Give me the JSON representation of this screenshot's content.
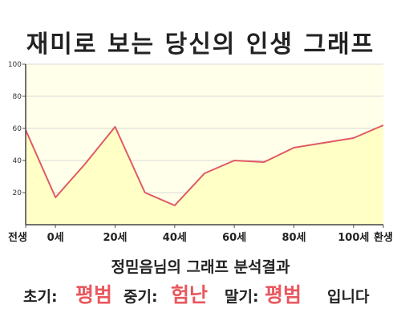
{
  "title": "재미로 보는 당신의 인생 그래프",
  "chart_data": {
    "type": "area",
    "x": [
      -10,
      0,
      10,
      20,
      30,
      40,
      50,
      60,
      70,
      80,
      90,
      100,
      110
    ],
    "y": [
      59,
      17,
      38,
      61,
      20,
      12,
      32,
      40,
      39,
      48,
      51,
      54,
      62
    ],
    "xlim": [
      -10,
      110
    ],
    "ylim": [
      0,
      100
    ],
    "yticks": [
      20,
      40,
      60,
      80,
      100
    ],
    "xtick_positions": [
      -10,
      0,
      20,
      40,
      60,
      80,
      100,
      110
    ],
    "xtick_labels": [
      "전생",
      "0세",
      "20세",
      "40세",
      "60세",
      "80세",
      "100세",
      "환생"
    ],
    "grid": true,
    "colors": {
      "line": "#e05a63",
      "fill": "#ffffc6",
      "plot_bg": "#ffffea",
      "grid": "#d8d8d8"
    }
  },
  "summary": {
    "title": "정믿음님의 그래프 분석결과",
    "early_label": "초기:",
    "early_value": "평범",
    "mid_label": "중기:",
    "mid_value": "험난",
    "late_label": "말기:",
    "late_value": "평범",
    "ending": "입니다"
  }
}
